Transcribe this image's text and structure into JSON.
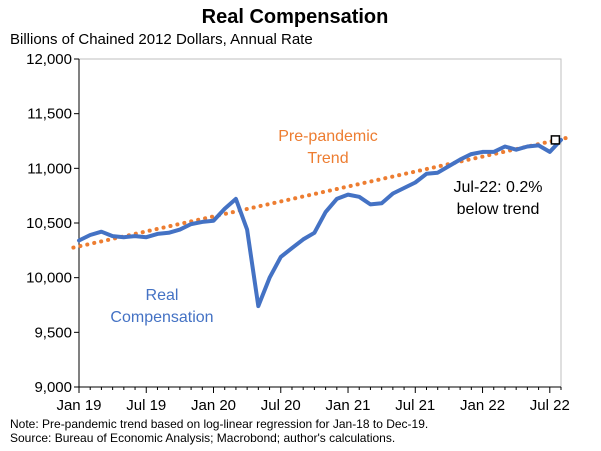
{
  "chart_data": {
    "type": "line",
    "title": "Real Compensation",
    "subtitle": "Billions of Chained 2012 Dollars, Annual Rate",
    "ylim": [
      9000,
      12000
    ],
    "yticks": [
      9000,
      9500,
      10000,
      10500,
      11000,
      11500,
      12000
    ],
    "ytick_labels": [
      "9,000",
      "9,500",
      "10,000",
      "10,500",
      "11,000",
      "11,500",
      "12,000"
    ],
    "xlim": [
      0,
      43
    ],
    "xticks": [
      {
        "pos": 0,
        "label": "Jan 19"
      },
      {
        "pos": 6,
        "label": "Jul 19"
      },
      {
        "pos": 12,
        "label": "Jan 20"
      },
      {
        "pos": 18,
        "label": "Jul 20"
      },
      {
        "pos": 24,
        "label": "Jan 21"
      },
      {
        "pos": 30,
        "label": "Jul 21"
      },
      {
        "pos": 36,
        "label": "Jan 22"
      },
      {
        "pos": 42,
        "label": "Jul 22"
      }
    ],
    "series": [
      {
        "name": "Real Compensation",
        "label_lines": [
          "Real",
          "Compensation"
        ],
        "color": "#4472C4",
        "style": "solid",
        "values": [
          10340,
          10390,
          10420,
          10380,
          10370,
          10380,
          10370,
          10400,
          10410,
          10440,
          10490,
          10510,
          10520,
          10630,
          10720,
          10440,
          9740,
          10000,
          10190,
          10270,
          10350,
          10410,
          10600,
          10720,
          10760,
          10740,
          10670,
          10680,
          10770,
          10820,
          10870,
          10950,
          10960,
          11020,
          11080,
          11130,
          11150,
          11150,
          11200,
          11170,
          11200,
          11210,
          11150,
          11260
        ]
      },
      {
        "name": "Pre-pandemic Trend",
        "label_lines": [
          "Pre-pandemic",
          "Trend"
        ],
        "color": "#ED7D31",
        "style": "dotted",
        "x": [
          -0.5,
          44
        ],
        "values": [
          10275,
          11290
        ]
      }
    ],
    "endpoint_marker": {
      "x": 42.5,
      "value": 11260
    },
    "annotation_lines": [
      "Jul-22: 0.2%",
      "below trend"
    ]
  },
  "footnotes": {
    "note": "Note: Pre-pandemic trend based on log-linear regression for Jan-18 to Dec-19.",
    "source": "Source: Bureau of Economic Analysis; Macrobond; author's calculations."
  }
}
